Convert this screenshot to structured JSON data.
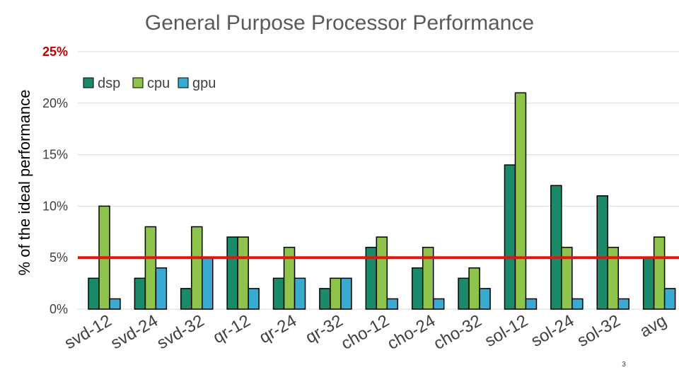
{
  "chart_data": {
    "type": "bar",
    "title": "General Purpose Processor Performance",
    "xlabel": "",
    "ylabel": "% of the ideal performance",
    "ylim": [
      0,
      25
    ],
    "ytick_values": [
      0,
      5,
      10,
      15,
      20,
      25
    ],
    "ytick_labels": [
      "0%",
      "5%",
      "10%",
      "15%",
      "20%",
      "25%"
    ],
    "categories": [
      "svd-12",
      "svd-24",
      "svd-32",
      "qr-12",
      "qr-24",
      "qr-32",
      "cho-12",
      "cho-24",
      "cho-32",
      "sol-12",
      "sol-24",
      "sol-32",
      "avg"
    ],
    "series": [
      {
        "name": "dsp",
        "color": "#1b8a6b",
        "values": [
          3,
          3,
          2,
          7,
          3,
          2,
          6,
          4,
          3,
          14,
          12,
          11,
          5
        ]
      },
      {
        "name": "cpu",
        "color": "#8ec44c",
        "values": [
          10,
          8,
          8,
          7,
          6,
          3,
          7,
          6,
          4,
          21,
          6,
          6,
          7
        ]
      },
      {
        "name": "gpu",
        "color": "#3aabd0",
        "values": [
          1,
          4,
          5,
          2,
          3,
          3,
          1,
          1,
          2,
          1,
          1,
          1,
          2
        ]
      }
    ],
    "reference_line": {
      "value": 5,
      "color": "#e8120c"
    },
    "legend_position": "top-left",
    "grid": true
  },
  "page_number": "3"
}
